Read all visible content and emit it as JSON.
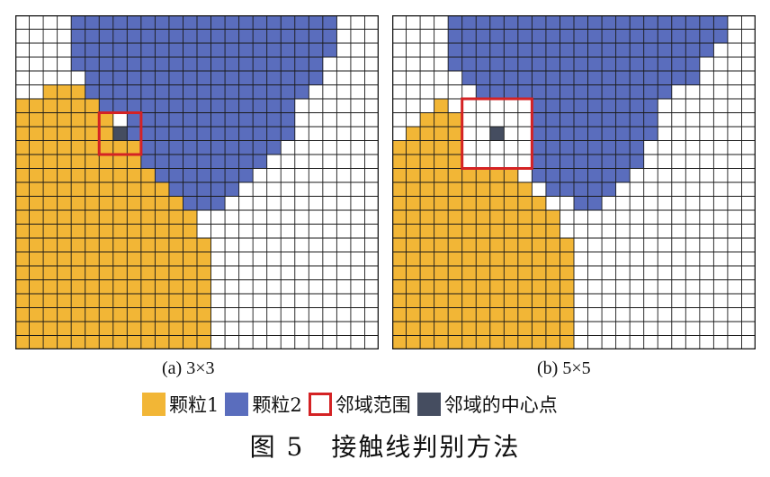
{
  "figure": {
    "caption": "图 5　接触线判别方法"
  },
  "colors": {
    "particle1": "#f2b636",
    "particle2": "#5a6dbd",
    "neighborhood": "#d42224",
    "center": "#454d60",
    "grid": "#1a1a1a",
    "background": "#ffffff"
  },
  "legend": {
    "items": [
      {
        "label": "颗粒1",
        "swatch": "particle1"
      },
      {
        "label": "颗粒2",
        "swatch": "particle2"
      },
      {
        "label": "邻域范围",
        "swatch": "neighborhood"
      },
      {
        "label": "邻域的中心点",
        "swatch": "center"
      }
    ]
  },
  "panels": [
    {
      "id": "a",
      "caption": "(a) 3×3",
      "grid": {
        "cols": 26,
        "rows": 24
      },
      "window_size": 3,
      "center_cell": {
        "col": 7,
        "row": 8
      },
      "particle1_rows": [
        [
          0,
          0,
          -1
        ],
        [
          1,
          0,
          -1
        ],
        [
          2,
          0,
          -1
        ],
        [
          3,
          0,
          -1
        ],
        [
          4,
          0,
          -1
        ],
        [
          5,
          2,
          4
        ],
        [
          6,
          0,
          6
        ],
        [
          7,
          0,
          6
        ],
        [
          8,
          0,
          7
        ],
        [
          9,
          0,
          8
        ],
        [
          10,
          0,
          9
        ],
        [
          11,
          0,
          10
        ],
        [
          12,
          0,
          11
        ],
        [
          13,
          0,
          11
        ],
        [
          14,
          0,
          12
        ],
        [
          15,
          0,
          12
        ],
        [
          16,
          0,
          13
        ],
        [
          17,
          0,
          13
        ],
        [
          18,
          0,
          13
        ],
        [
          19,
          0,
          13
        ],
        [
          20,
          0,
          13
        ],
        [
          21,
          0,
          13
        ],
        [
          22,
          0,
          13
        ],
        [
          23,
          0,
          13
        ]
      ],
      "particle2_rows": [
        [
          0,
          4,
          22
        ],
        [
          1,
          4,
          22
        ],
        [
          2,
          4,
          22
        ],
        [
          3,
          4,
          21
        ],
        [
          4,
          5,
          21
        ],
        [
          5,
          5,
          20
        ],
        [
          6,
          6,
          19
        ],
        [
          7,
          8,
          19
        ],
        [
          8,
          8,
          19
        ],
        [
          9,
          9,
          18
        ],
        [
          10,
          9,
          17
        ],
        [
          11,
          10,
          16
        ],
        [
          12,
          11,
          15
        ],
        [
          13,
          12,
          14
        ],
        [
          14,
          0,
          -1
        ],
        [
          15,
          0,
          -1
        ],
        [
          16,
          0,
          -1
        ],
        [
          17,
          0,
          -1
        ],
        [
          18,
          0,
          -1
        ],
        [
          19,
          0,
          -1
        ],
        [
          20,
          0,
          -1
        ],
        [
          21,
          0,
          -1
        ],
        [
          22,
          0,
          -1
        ],
        [
          23,
          0,
          -1
        ]
      ]
    },
    {
      "id": "b",
      "caption": "(b) 5×5",
      "grid": {
        "cols": 26,
        "rows": 24
      },
      "window_size": 5,
      "center_cell": {
        "col": 7,
        "row": 8
      },
      "particle1_rows": [
        [
          0,
          0,
          -1
        ],
        [
          1,
          0,
          -1
        ],
        [
          2,
          0,
          -1
        ],
        [
          3,
          0,
          -1
        ],
        [
          4,
          0,
          -1
        ],
        [
          5,
          0,
          -1
        ],
        [
          6,
          3,
          3
        ],
        [
          7,
          2,
          4
        ],
        [
          8,
          1,
          5
        ],
        [
          9,
          0,
          5
        ],
        [
          10,
          0,
          7
        ],
        [
          11,
          0,
          8
        ],
        [
          12,
          0,
          9
        ],
        [
          13,
          0,
          10
        ],
        [
          14,
          0,
          11
        ],
        [
          15,
          0,
          11
        ],
        [
          16,
          0,
          12
        ],
        [
          17,
          0,
          12
        ],
        [
          18,
          0,
          12
        ],
        [
          19,
          0,
          12
        ],
        [
          20,
          0,
          12
        ],
        [
          21,
          0,
          12
        ],
        [
          22,
          0,
          12
        ],
        [
          23,
          0,
          12
        ]
      ],
      "particle2_rows": [
        [
          0,
          4,
          23
        ],
        [
          1,
          4,
          23
        ],
        [
          2,
          4,
          22
        ],
        [
          3,
          4,
          21
        ],
        [
          4,
          5,
          21
        ],
        [
          5,
          6,
          19
        ],
        [
          6,
          7,
          18
        ],
        [
          7,
          7,
          18
        ],
        [
          8,
          8,
          18
        ],
        [
          9,
          8,
          17
        ],
        [
          10,
          9,
          17
        ],
        [
          11,
          10,
          16
        ],
        [
          12,
          11,
          15
        ],
        [
          13,
          13,
          14
        ],
        [
          14,
          0,
          -1
        ],
        [
          15,
          0,
          -1
        ],
        [
          16,
          0,
          -1
        ],
        [
          17,
          0,
          -1
        ],
        [
          18,
          0,
          -1
        ],
        [
          19,
          0,
          -1
        ],
        [
          20,
          0,
          -1
        ],
        [
          21,
          0,
          -1
        ],
        [
          22,
          0,
          -1
        ],
        [
          23,
          0,
          -1
        ]
      ]
    }
  ]
}
